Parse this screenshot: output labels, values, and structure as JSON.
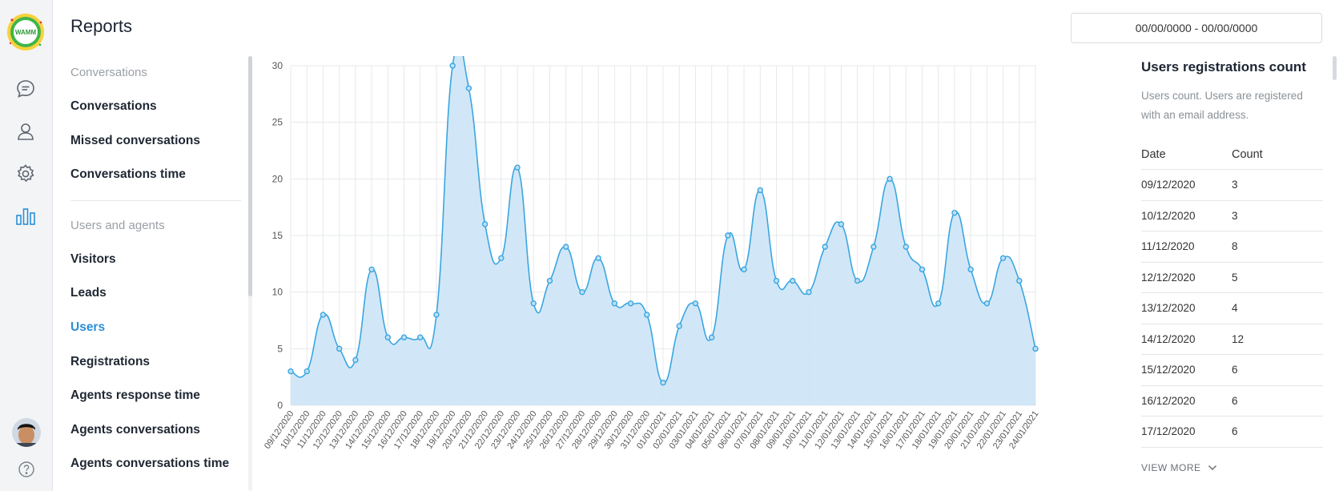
{
  "app": {
    "logo_text": "WAMM"
  },
  "header": {
    "title": "Reports",
    "date_range": "00/00/0000 - 00/00/0000"
  },
  "rail": {
    "icons": [
      "chat-icon",
      "user-icon",
      "gear-icon",
      "bar-chart-icon"
    ],
    "help_icon": "question-icon"
  },
  "nav": {
    "group1": {
      "label": "Conversations",
      "items": [
        "Conversations",
        "Missed conversations",
        "Conversations time"
      ]
    },
    "group2": {
      "label": "Users and agents",
      "items": [
        "Visitors",
        "Leads",
        "Users",
        "Registrations",
        "Agents response time",
        "Agents conversations",
        "Agents conversations time"
      ]
    },
    "active": "Users"
  },
  "colors": {
    "accent": "#2a8fd8",
    "chart_line": "#3aa6e0",
    "chart_fill": "#cfe6f8"
  },
  "chart_data": {
    "type": "area",
    "x": [
      "09/12/2020",
      "10/12/2020",
      "11/12/2020",
      "12/12/2020",
      "13/12/2020",
      "14/12/2020",
      "15/12/2020",
      "16/12/2020",
      "17/12/2020",
      "18/12/2020",
      "19/12/2020",
      "20/12/2020",
      "21/12/2020",
      "22/12/2020",
      "23/12/2020",
      "24/12/2020",
      "25/12/2020",
      "26/12/2020",
      "27/12/2020",
      "28/12/2020",
      "29/12/2020",
      "30/12/2020",
      "31/12/2020",
      "01/01/2021",
      "02/01/2021",
      "03/01/2021",
      "04/01/2021",
      "05/01/2021",
      "06/01/2021",
      "07/01/2021",
      "08/01/2021",
      "09/01/2021",
      "10/01/2021",
      "11/01/2021",
      "12/01/2021",
      "13/01/2021",
      "14/01/2021",
      "15/01/2021",
      "16/01/2021",
      "17/01/2021",
      "18/01/2021",
      "19/01/2021",
      "20/01/2021",
      "21/01/2021",
      "22/01/2021",
      "23/01/2021",
      "24/01/2021"
    ],
    "values": [
      3,
      3,
      8,
      5,
      4,
      12,
      6,
      6,
      6,
      8,
      30,
      28,
      16,
      13,
      21,
      9,
      11,
      14,
      10,
      13,
      9,
      9,
      8,
      2,
      7,
      9,
      6,
      15,
      12,
      19,
      11,
      11,
      10,
      14,
      16,
      11,
      14,
      20,
      14,
      12,
      9,
      17,
      12,
      9,
      13,
      11,
      5
    ],
    "ylim": [
      0,
      30
    ],
    "yticks": [
      0,
      5,
      10,
      15,
      20,
      25,
      30
    ],
    "grid": true
  },
  "panel": {
    "title": "Users registrations count",
    "description": "Users count. Users are registered with an email address.",
    "columns": [
      "Date",
      "Count"
    ],
    "rows": [
      [
        "09/12/2020",
        "3"
      ],
      [
        "10/12/2020",
        "3"
      ],
      [
        "11/12/2020",
        "8"
      ],
      [
        "12/12/2020",
        "5"
      ],
      [
        "13/12/2020",
        "4"
      ],
      [
        "14/12/2020",
        "12"
      ],
      [
        "15/12/2020",
        "6"
      ],
      [
        "16/12/2020",
        "6"
      ],
      [
        "17/12/2020",
        "6"
      ]
    ],
    "view_more": "VIEW MORE"
  }
}
